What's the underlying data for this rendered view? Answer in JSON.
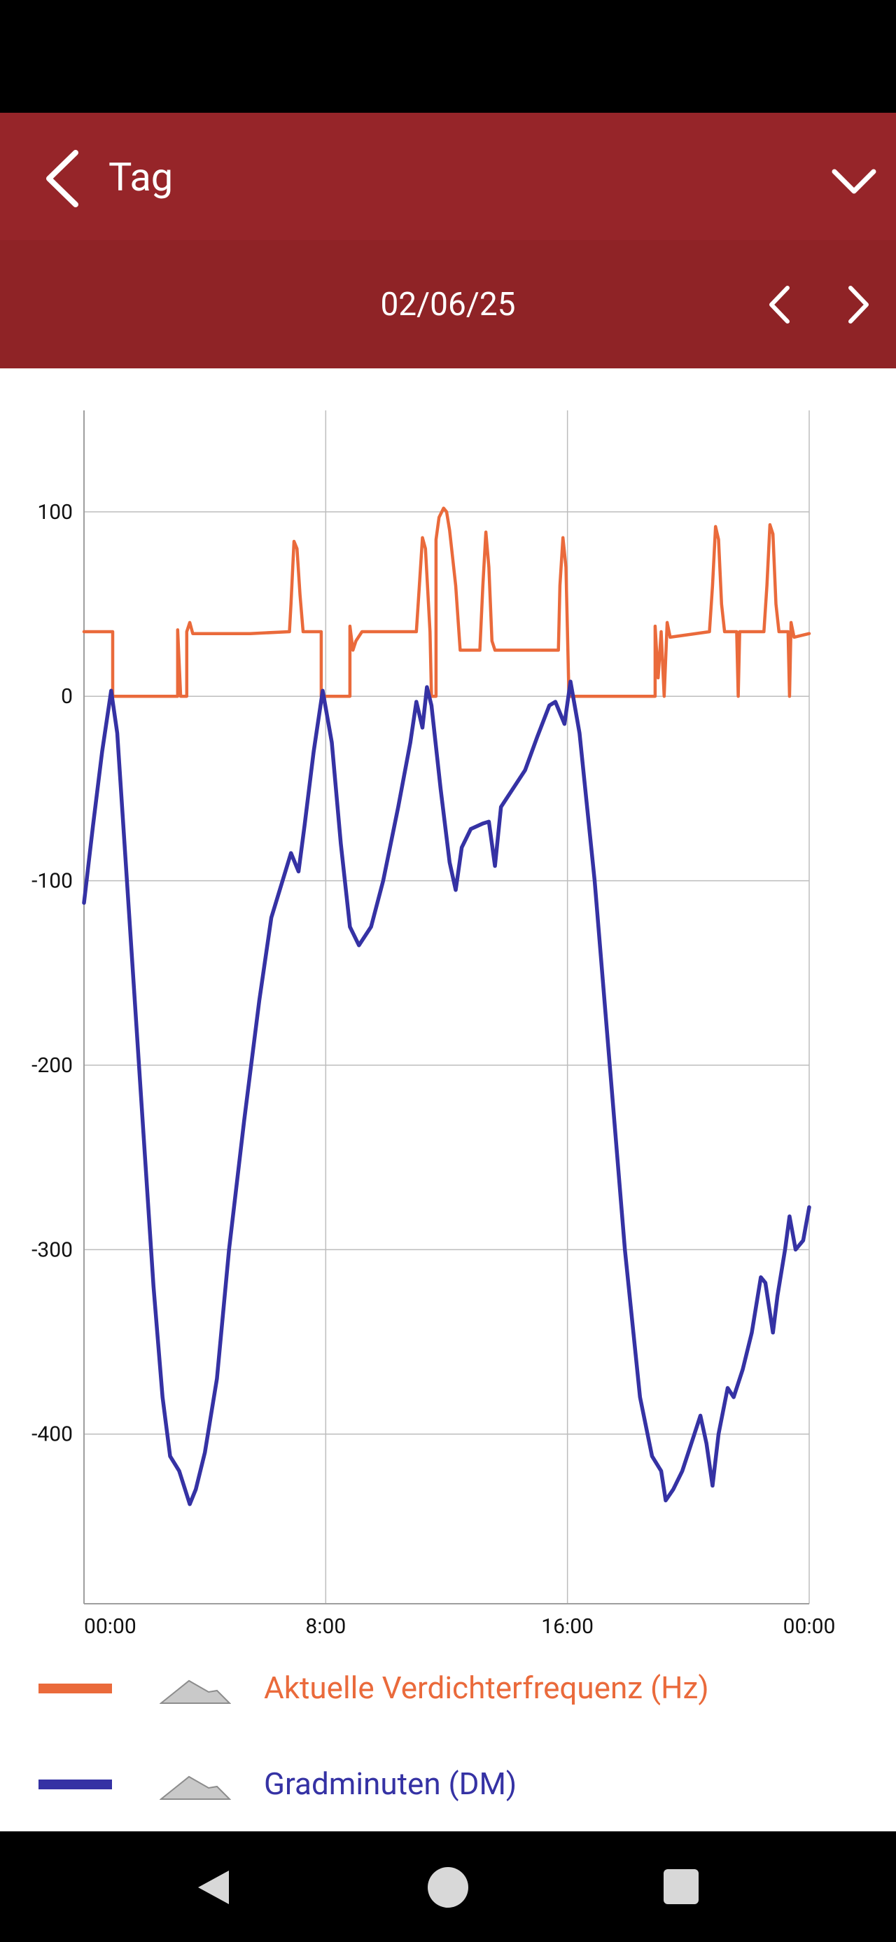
{
  "header": {
    "title": "Tag"
  },
  "date_bar": {
    "date": "02/06/25"
  },
  "colors": {
    "header_bg": "#962529",
    "date_bar_bg": "#8f2326",
    "series1": "#ea6a3b",
    "series2": "#3532a4"
  },
  "icons": {
    "back": "chevron-left-icon",
    "dropdown": "chevron-down-icon",
    "prev": "chevron-left-icon",
    "next": "chevron-right-icon"
  },
  "chart_data": {
    "type": "line",
    "x_unit": "hours",
    "xlim": [
      0,
      24
    ],
    "ylim": [
      -492,
      155
    ],
    "x_tick_labels": [
      "00:00",
      "8:00",
      "16:00",
      "00:00"
    ],
    "x_ticks": [
      0,
      8,
      16,
      24
    ],
    "y_ticks": [
      100,
      0,
      -100,
      -200,
      -300,
      -400
    ],
    "grid": true,
    "legend_position": "bottom",
    "series": [
      {
        "name": "Aktuelle Verdichterfrequenz (Hz)",
        "color": "#ea6a3b",
        "points": [
          [
            0,
            35
          ],
          [
            0.95,
            35
          ],
          [
            0.95,
            0
          ],
          [
            3.1,
            0
          ],
          [
            3.1,
            36
          ],
          [
            3.2,
            0
          ],
          [
            3.4,
            0
          ],
          [
            3.4,
            35
          ],
          [
            3.5,
            40
          ],
          [
            3.6,
            34
          ],
          [
            5.5,
            34
          ],
          [
            6.8,
            35
          ],
          [
            6.85,
            50
          ],
          [
            6.95,
            84
          ],
          [
            7.05,
            80
          ],
          [
            7.15,
            55
          ],
          [
            7.25,
            35
          ],
          [
            7.85,
            35
          ],
          [
            7.85,
            0
          ],
          [
            8.8,
            0
          ],
          [
            8.8,
            38
          ],
          [
            8.9,
            25
          ],
          [
            9.0,
            30
          ],
          [
            9.2,
            35
          ],
          [
            11.0,
            35
          ],
          [
            11.1,
            60
          ],
          [
            11.2,
            86
          ],
          [
            11.3,
            80
          ],
          [
            11.45,
            35
          ],
          [
            11.5,
            0
          ],
          [
            11.65,
            0
          ],
          [
            11.65,
            85
          ],
          [
            11.75,
            97
          ],
          [
            11.9,
            102
          ],
          [
            12.0,
            100
          ],
          [
            12.1,
            90
          ],
          [
            12.3,
            60
          ],
          [
            12.45,
            25
          ],
          [
            13.1,
            25
          ],
          [
            13.2,
            60
          ],
          [
            13.3,
            89
          ],
          [
            13.4,
            70
          ],
          [
            13.5,
            30
          ],
          [
            13.6,
            25
          ],
          [
            15.7,
            25
          ],
          [
            15.75,
            60
          ],
          [
            15.85,
            86
          ],
          [
            15.95,
            70
          ],
          [
            16.05,
            0
          ],
          [
            18.9,
            0
          ],
          [
            18.9,
            38
          ],
          [
            19.0,
            10
          ],
          [
            19.1,
            35
          ],
          [
            19.2,
            0
          ],
          [
            19.3,
            40
          ],
          [
            19.4,
            32
          ],
          [
            20.7,
            35
          ],
          [
            20.8,
            60
          ],
          [
            20.9,
            92
          ],
          [
            21.0,
            85
          ],
          [
            21.1,
            50
          ],
          [
            21.2,
            35
          ],
          [
            21.6,
            35
          ],
          [
            21.65,
            0
          ],
          [
            21.7,
            35
          ],
          [
            22.5,
            35
          ],
          [
            22.6,
            60
          ],
          [
            22.7,
            93
          ],
          [
            22.8,
            88
          ],
          [
            22.9,
            50
          ],
          [
            23.0,
            35
          ],
          [
            23.3,
            35
          ],
          [
            23.35,
            0
          ],
          [
            23.4,
            40
          ],
          [
            23.5,
            32
          ],
          [
            24,
            34
          ]
        ]
      },
      {
        "name": "Gradminuten (DM)",
        "color": "#3532a4",
        "points": [
          [
            0,
            -112
          ],
          [
            0.3,
            -70
          ],
          [
            0.6,
            -30
          ],
          [
            0.9,
            3
          ],
          [
            1.1,
            -20
          ],
          [
            1.5,
            -120
          ],
          [
            1.9,
            -220
          ],
          [
            2.3,
            -320
          ],
          [
            2.6,
            -380
          ],
          [
            2.85,
            -412
          ],
          [
            3.15,
            -420
          ],
          [
            3.5,
            -438
          ],
          [
            3.7,
            -430
          ],
          [
            4.0,
            -410
          ],
          [
            4.4,
            -370
          ],
          [
            4.8,
            -300
          ],
          [
            5.3,
            -230
          ],
          [
            5.8,
            -165
          ],
          [
            6.2,
            -120
          ],
          [
            6.85,
            -85
          ],
          [
            7.1,
            -95
          ],
          [
            7.3,
            -70
          ],
          [
            7.6,
            -30
          ],
          [
            7.9,
            3
          ],
          [
            8.2,
            -25
          ],
          [
            8.5,
            -80
          ],
          [
            8.8,
            -125
          ],
          [
            9.1,
            -135
          ],
          [
            9.5,
            -125
          ],
          [
            9.9,
            -100
          ],
          [
            10.4,
            -60
          ],
          [
            10.8,
            -25
          ],
          [
            11.0,
            -3
          ],
          [
            11.2,
            -17
          ],
          [
            11.35,
            5
          ],
          [
            11.5,
            -5
          ],
          [
            11.8,
            -50
          ],
          [
            12.1,
            -90
          ],
          [
            12.3,
            -105
          ],
          [
            12.5,
            -82
          ],
          [
            12.8,
            -72
          ],
          [
            13.2,
            -69
          ],
          [
            13.4,
            -68
          ],
          [
            13.6,
            -92
          ],
          [
            13.8,
            -60
          ],
          [
            14.2,
            -50
          ],
          [
            14.6,
            -40
          ],
          [
            15.0,
            -22
          ],
          [
            15.4,
            -5
          ],
          [
            15.6,
            -3
          ],
          [
            15.9,
            -15
          ],
          [
            16.1,
            8
          ],
          [
            16.4,
            -20
          ],
          [
            16.9,
            -100
          ],
          [
            17.4,
            -200
          ],
          [
            17.9,
            -300
          ],
          [
            18.4,
            -380
          ],
          [
            18.8,
            -412
          ],
          [
            19.1,
            -420
          ],
          [
            19.25,
            -436
          ],
          [
            19.5,
            -430
          ],
          [
            19.8,
            -420
          ],
          [
            20.2,
            -400
          ],
          [
            20.4,
            -390
          ],
          [
            20.6,
            -405
          ],
          [
            20.8,
            -428
          ],
          [
            21.0,
            -400
          ],
          [
            21.3,
            -375
          ],
          [
            21.5,
            -380
          ],
          [
            21.8,
            -365
          ],
          [
            22.1,
            -345
          ],
          [
            22.4,
            -315
          ],
          [
            22.55,
            -318
          ],
          [
            22.8,
            -345
          ],
          [
            22.95,
            -325
          ],
          [
            23.2,
            -300
          ],
          [
            23.35,
            -282
          ],
          [
            23.55,
            -300
          ],
          [
            23.8,
            -295
          ],
          [
            24,
            -277
          ]
        ]
      }
    ]
  },
  "legend": [
    {
      "label": "Aktuelle Verdichterfrequenz (Hz)",
      "color": "#ea6a3b"
    },
    {
      "label": "Gradminuten (DM)",
      "color": "#3532a4"
    }
  ],
  "nav": {
    "back": "nav-back-icon",
    "home": "nav-home-icon",
    "recents": "nav-recents-icon"
  }
}
